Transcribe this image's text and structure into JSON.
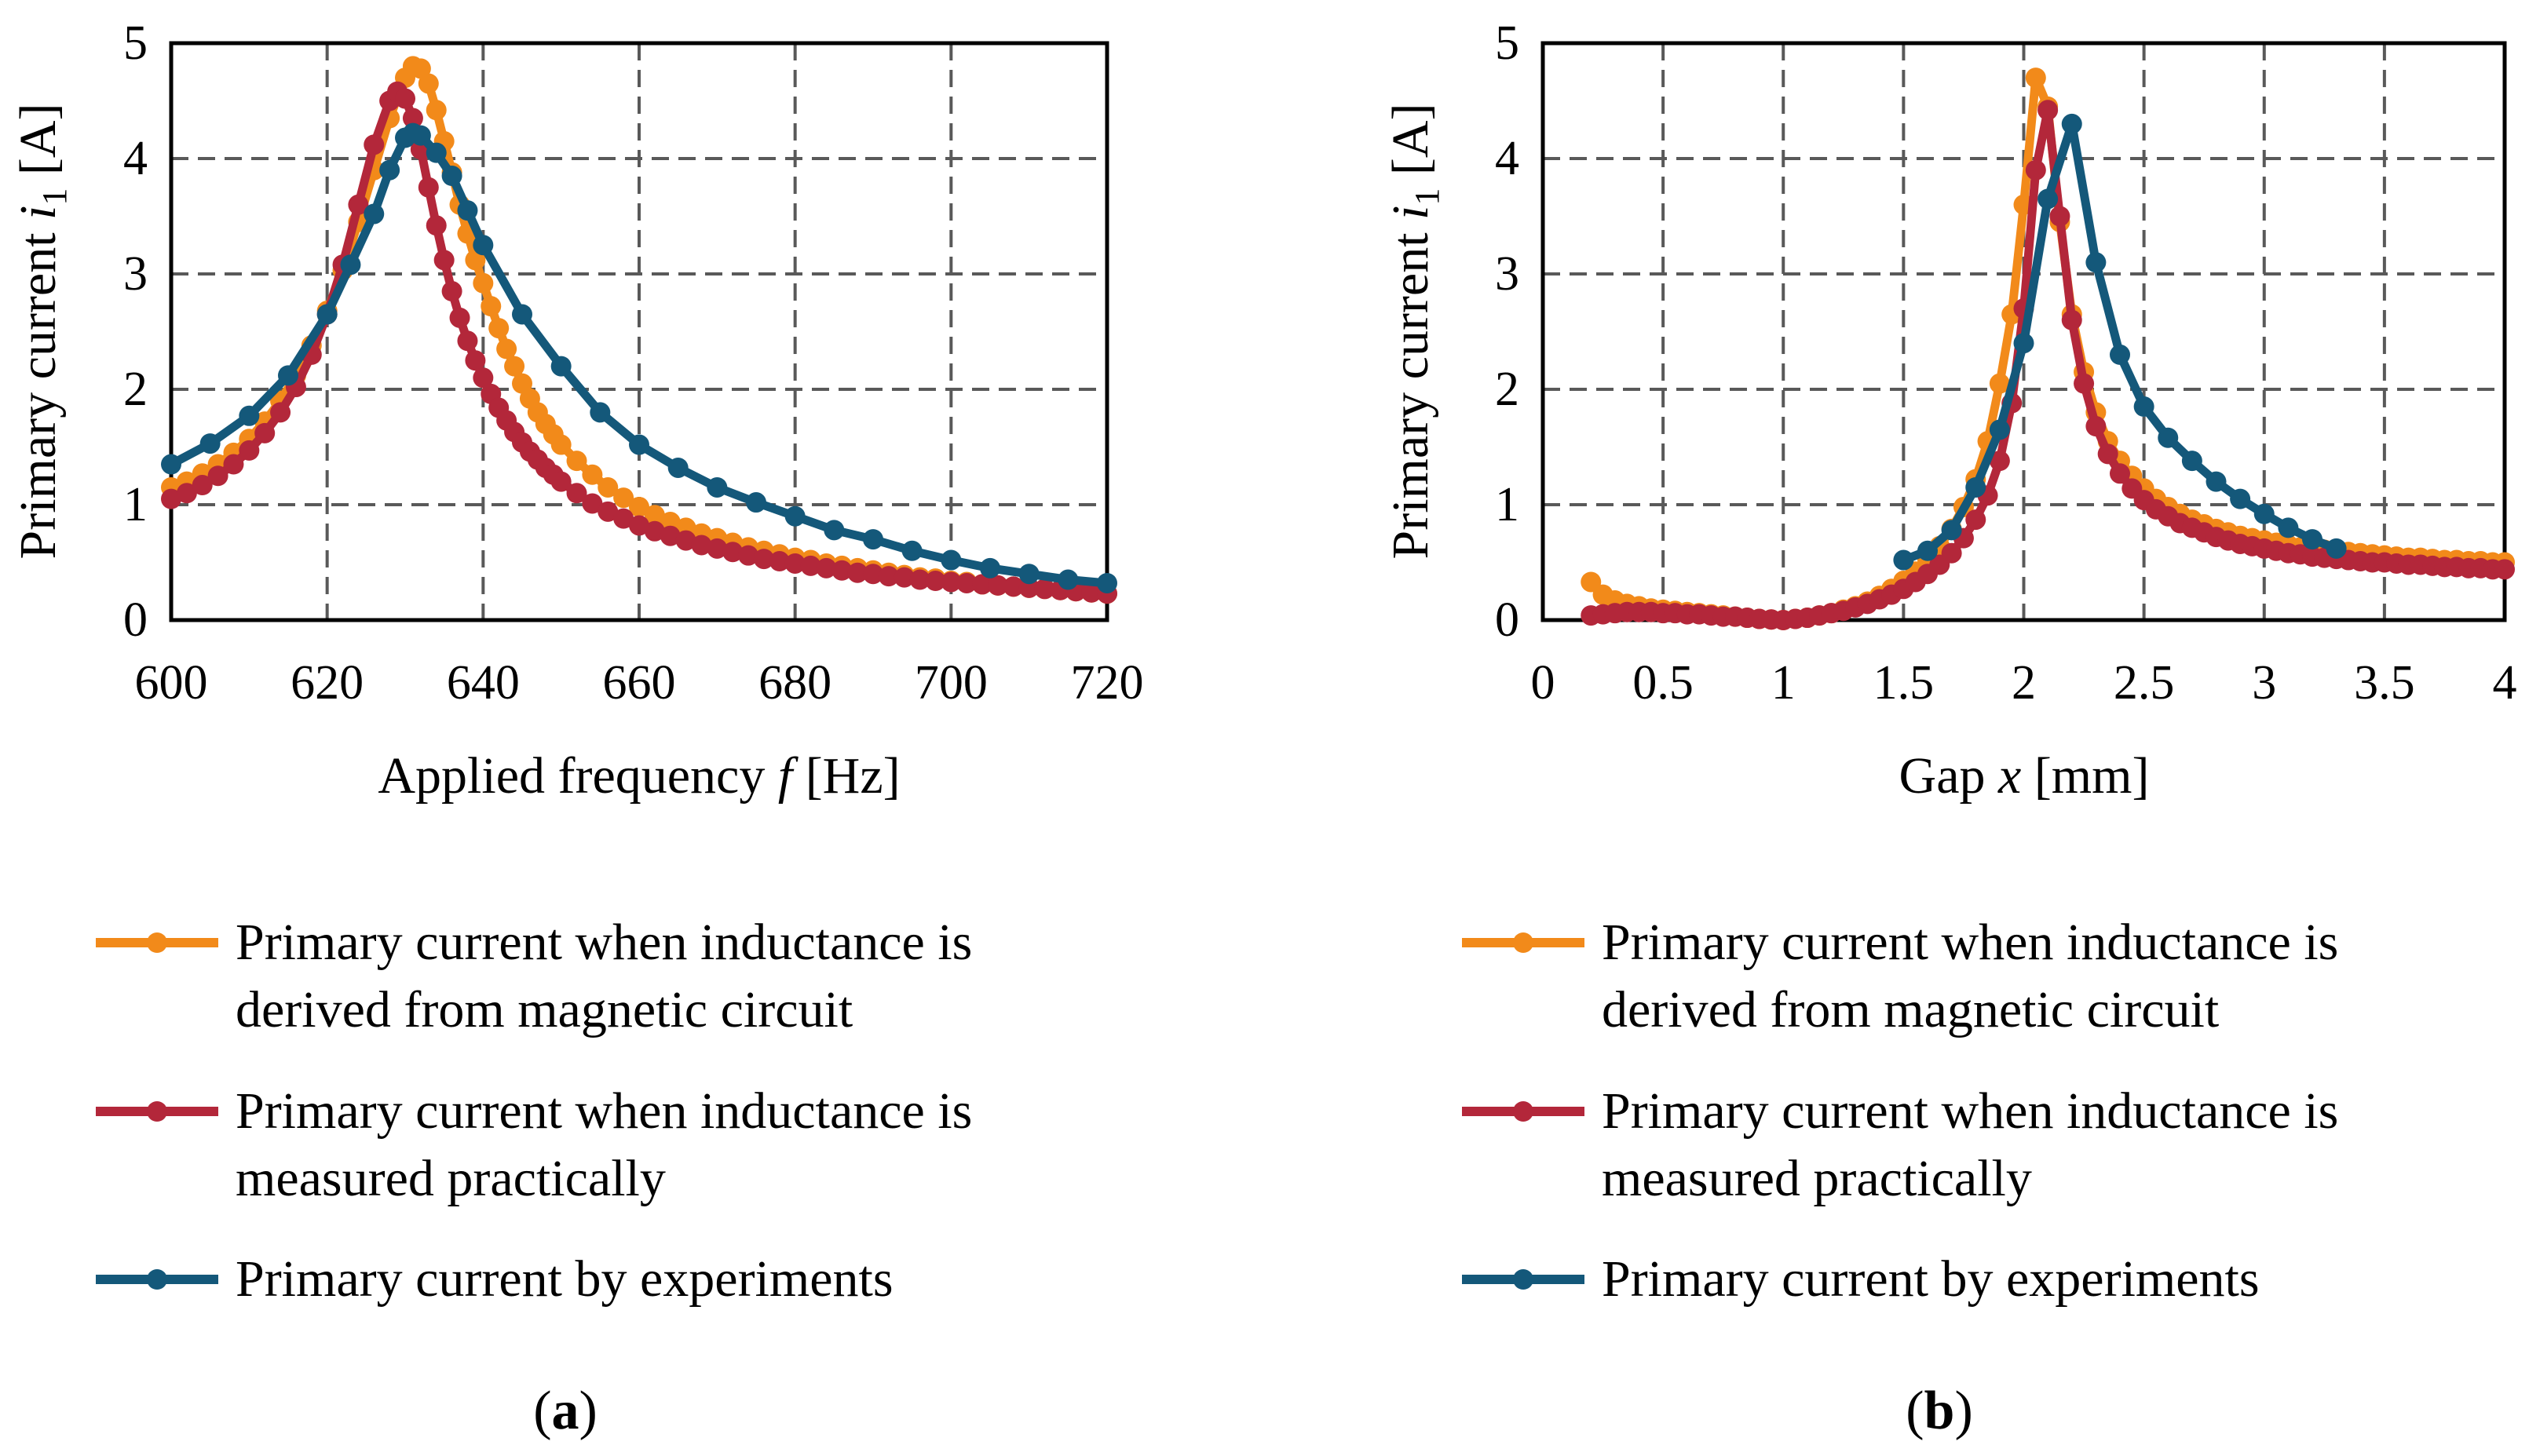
{
  "colors": {
    "orange": "#F28A1A",
    "red": "#B3273A",
    "blue": "#14587A"
  },
  "legend": {
    "s1_line1": "Primary current when inductance is",
    "s1_line2": "derived from magnetic circuit",
    "s2_line1": "Primary current when inductance is",
    "s2_line2": "measured practically",
    "s3_line1": "Primary current by experiments"
  },
  "panels": {
    "a": {
      "label_open": "(",
      "label_letter": "a",
      "label_close": ")"
    },
    "b": {
      "label_open": "(",
      "label_letter": "b",
      "label_close": ")"
    }
  },
  "chart_data": [
    {
      "type": "line",
      "panel": "a",
      "xlabel_prefix": "Applied frequency ",
      "xlabel_var": "f",
      "xlabel_suffix": " [Hz]",
      "ylabel_prefix": "Primary current ",
      "ylabel_var": "i",
      "ylabel_sub": "1",
      "ylabel_suffix": " [A]",
      "xlim": [
        600,
        720
      ],
      "ylim": [
        0,
        5
      ],
      "xticks": [
        600,
        620,
        640,
        660,
        680,
        700,
        720
      ],
      "yticks": [
        0,
        1,
        2,
        3,
        4,
        5
      ],
      "xtick_labels": [
        "600",
        "620",
        "640",
        "660",
        "680",
        "700",
        "720"
      ],
      "ytick_labels": [
        "0",
        "1",
        "2",
        "3",
        "4",
        "5"
      ],
      "grid": true,
      "legend_position": "below",
      "series": [
        {
          "name": "Primary current when inductance is derived from magnetic circuit",
          "color_key": "orange",
          "x": [
            600,
            602,
            604,
            606,
            608,
            610,
            612,
            614,
            616,
            618,
            620,
            622,
            624,
            626,
            628,
            630,
            631,
            632,
            633,
            634,
            635,
            636,
            637,
            638,
            639,
            640,
            641,
            642,
            643,
            644,
            645,
            646,
            647,
            648,
            649,
            650,
            652,
            654,
            656,
            658,
            660,
            662,
            664,
            666,
            668,
            670,
            672,
            674,
            676,
            678,
            680,
            682,
            684,
            686,
            688,
            690,
            692,
            694,
            696,
            698,
            700,
            702,
            704,
            706,
            708,
            710,
            712,
            714,
            716,
            718,
            720
          ],
          "y": [
            1.15,
            1.2,
            1.27,
            1.35,
            1.45,
            1.57,
            1.72,
            1.9,
            2.12,
            2.38,
            2.68,
            3.03,
            3.45,
            3.9,
            4.35,
            4.7,
            4.8,
            4.78,
            4.65,
            4.42,
            4.15,
            3.88,
            3.6,
            3.35,
            3.12,
            2.92,
            2.72,
            2.53,
            2.35,
            2.2,
            2.05,
            1.92,
            1.8,
            1.7,
            1.61,
            1.52,
            1.38,
            1.26,
            1.15,
            1.06,
            0.98,
            0.91,
            0.85,
            0.8,
            0.75,
            0.71,
            0.67,
            0.63,
            0.6,
            0.57,
            0.54,
            0.52,
            0.49,
            0.47,
            0.45,
            0.43,
            0.41,
            0.39,
            0.37,
            0.36,
            0.34,
            0.33,
            0.31,
            0.3,
            0.29,
            0.28,
            0.27,
            0.26,
            0.25,
            0.24,
            0.23
          ]
        },
        {
          "name": "Primary current when inductance is measured practically",
          "color_key": "red",
          "x": [
            600,
            602,
            604,
            606,
            608,
            610,
            612,
            614,
            616,
            618,
            620,
            622,
            624,
            626,
            628,
            629,
            630,
            631,
            632,
            633,
            634,
            635,
            636,
            637,
            638,
            639,
            640,
            641,
            642,
            643,
            644,
            645,
            646,
            647,
            648,
            649,
            650,
            652,
            654,
            656,
            658,
            660,
            662,
            664,
            666,
            668,
            670,
            672,
            674,
            676,
            678,
            680,
            682,
            684,
            686,
            688,
            690,
            692,
            694,
            696,
            698,
            700,
            702,
            704,
            706,
            708,
            710,
            712,
            714,
            716,
            718,
            720
          ],
          "y": [
            1.05,
            1.1,
            1.17,
            1.25,
            1.35,
            1.47,
            1.62,
            1.8,
            2.02,
            2.3,
            2.65,
            3.08,
            3.6,
            4.12,
            4.5,
            4.58,
            4.52,
            4.35,
            4.08,
            3.75,
            3.42,
            3.12,
            2.85,
            2.62,
            2.42,
            2.25,
            2.1,
            1.96,
            1.84,
            1.73,
            1.63,
            1.54,
            1.46,
            1.39,
            1.32,
            1.26,
            1.2,
            1.1,
            1.01,
            0.94,
            0.88,
            0.82,
            0.77,
            0.73,
            0.69,
            0.65,
            0.62,
            0.59,
            0.56,
            0.53,
            0.51,
            0.49,
            0.47,
            0.45,
            0.43,
            0.41,
            0.4,
            0.38,
            0.37,
            0.35,
            0.34,
            0.33,
            0.32,
            0.31,
            0.3,
            0.29,
            0.28,
            0.27,
            0.26,
            0.25,
            0.24,
            0.23
          ]
        },
        {
          "name": "Primary current by experiments",
          "color_key": "blue",
          "x": [
            600,
            605,
            610,
            615,
            620,
            623,
            626,
            628,
            630,
            631,
            632,
            634,
            636,
            638,
            640,
            645,
            650,
            655,
            660,
            665,
            670,
            675,
            680,
            685,
            690,
            695,
            700,
            705,
            710,
            715,
            720
          ],
          "y": [
            1.35,
            1.53,
            1.77,
            2.12,
            2.65,
            3.08,
            3.52,
            3.9,
            4.18,
            4.22,
            4.2,
            4.05,
            3.85,
            3.55,
            3.25,
            2.65,
            2.2,
            1.8,
            1.52,
            1.32,
            1.15,
            1.02,
            0.9,
            0.78,
            0.7,
            0.6,
            0.52,
            0.45,
            0.4,
            0.35,
            0.32
          ]
        }
      ]
    },
    {
      "type": "line",
      "panel": "b",
      "xlabel_prefix": "Gap ",
      "xlabel_var": "x",
      "xlabel_suffix": " [mm]",
      "ylabel_prefix": "Primary current ",
      "ylabel_var": "i",
      "ylabel_sub": "1",
      "ylabel_suffix": " [A]",
      "xlim": [
        0,
        4
      ],
      "ylim": [
        0,
        5
      ],
      "xticks": [
        0,
        0.5,
        1,
        1.5,
        2,
        2.5,
        3,
        3.5,
        4
      ],
      "yticks": [
        0,
        1,
        2,
        3,
        4,
        5
      ],
      "xtick_labels": [
        "0",
        "0.5",
        "1",
        "1.5",
        "2",
        "2.5",
        "3",
        "3.5",
        "4"
      ],
      "ytick_labels": [
        "0",
        "1",
        "2",
        "3",
        "4",
        "5"
      ],
      "grid": true,
      "legend_position": "below",
      "series": [
        {
          "name": "Primary current when inductance is derived from magnetic circuit",
          "color_key": "orange",
          "x": [
            0.2,
            0.25,
            0.3,
            0.35,
            0.4,
            0.45,
            0.5,
            0.55,
            0.6,
            0.65,
            0.7,
            0.75,
            0.8,
            0.85,
            0.9,
            0.95,
            1.0,
            1.05,
            1.1,
            1.15,
            1.2,
            1.25,
            1.3,
            1.35,
            1.4,
            1.45,
            1.5,
            1.55,
            1.6,
            1.65,
            1.7,
            1.75,
            1.8,
            1.85,
            1.9,
            1.95,
            2.0,
            2.05,
            2.1,
            2.15,
            2.2,
            2.25,
            2.3,
            2.35,
            2.4,
            2.45,
            2.5,
            2.55,
            2.6,
            2.65,
            2.7,
            2.75,
            2.8,
            2.85,
            2.9,
            2.95,
            3.0,
            3.05,
            3.1,
            3.15,
            3.2,
            3.25,
            3.3,
            3.35,
            3.4,
            3.45,
            3.5,
            3.55,
            3.6,
            3.65,
            3.7,
            3.75,
            3.8,
            3.85,
            3.9,
            3.95,
            4.0
          ],
          "y": [
            0.33,
            0.22,
            0.17,
            0.14,
            0.12,
            0.1,
            0.09,
            0.08,
            0.07,
            0.06,
            0.05,
            0.04,
            0.03,
            0.02,
            0.01,
            0.005,
            0.0,
            0.01,
            0.02,
            0.04,
            0.06,
            0.09,
            0.12,
            0.16,
            0.21,
            0.27,
            0.34,
            0.42,
            0.52,
            0.64,
            0.79,
            0.98,
            1.22,
            1.55,
            2.05,
            2.65,
            3.6,
            4.7,
            4.45,
            3.45,
            2.65,
            2.15,
            1.8,
            1.55,
            1.38,
            1.25,
            1.14,
            1.05,
            0.98,
            0.92,
            0.87,
            0.83,
            0.79,
            0.76,
            0.73,
            0.71,
            0.69,
            0.67,
            0.65,
            0.63,
            0.62,
            0.61,
            0.6,
            0.59,
            0.58,
            0.57,
            0.56,
            0.55,
            0.54,
            0.54,
            0.53,
            0.52,
            0.52,
            0.51,
            0.51,
            0.5,
            0.5
          ]
        },
        {
          "name": "Primary current when inductance is measured practically",
          "color_key": "red",
          "x": [
            0.2,
            0.25,
            0.3,
            0.35,
            0.4,
            0.45,
            0.5,
            0.55,
            0.6,
            0.65,
            0.7,
            0.75,
            0.8,
            0.85,
            0.9,
            0.95,
            1.0,
            1.05,
            1.1,
            1.15,
            1.2,
            1.25,
            1.3,
            1.35,
            1.4,
            1.45,
            1.5,
            1.55,
            1.6,
            1.65,
            1.7,
            1.75,
            1.8,
            1.85,
            1.9,
            1.95,
            2.0,
            2.05,
            2.1,
            2.15,
            2.2,
            2.25,
            2.3,
            2.35,
            2.4,
            2.45,
            2.5,
            2.55,
            2.6,
            2.65,
            2.7,
            2.75,
            2.8,
            2.85,
            2.9,
            2.95,
            3.0,
            3.05,
            3.1,
            3.15,
            3.2,
            3.25,
            3.3,
            3.35,
            3.4,
            3.45,
            3.5,
            3.55,
            3.6,
            3.65,
            3.7,
            3.75,
            3.8,
            3.85,
            3.9,
            3.95,
            4.0
          ],
          "y": [
            0.04,
            0.05,
            0.06,
            0.07,
            0.07,
            0.07,
            0.06,
            0.06,
            0.05,
            0.05,
            0.04,
            0.03,
            0.03,
            0.02,
            0.01,
            0.005,
            0.0,
            0.01,
            0.02,
            0.04,
            0.06,
            0.08,
            0.11,
            0.14,
            0.18,
            0.22,
            0.27,
            0.33,
            0.4,
            0.48,
            0.58,
            0.71,
            0.87,
            1.08,
            1.38,
            1.88,
            2.7,
            3.9,
            4.42,
            3.5,
            2.6,
            2.05,
            1.68,
            1.44,
            1.27,
            1.14,
            1.04,
            0.96,
            0.9,
            0.84,
            0.8,
            0.76,
            0.72,
            0.69,
            0.66,
            0.64,
            0.62,
            0.6,
            0.58,
            0.57,
            0.55,
            0.54,
            0.53,
            0.52,
            0.51,
            0.5,
            0.5,
            0.49,
            0.48,
            0.48,
            0.47,
            0.46,
            0.46,
            0.45,
            0.45,
            0.44,
            0.44
          ]
        },
        {
          "name": "Primary current by experiments",
          "color_key": "blue",
          "x": [
            1.5,
            1.6,
            1.7,
            1.8,
            1.9,
            2.0,
            2.1,
            2.2,
            2.3,
            2.4,
            2.5,
            2.6,
            2.7,
            2.8,
            2.9,
            3.0,
            3.1,
            3.2,
            3.3
          ],
          "y": [
            0.52,
            0.6,
            0.78,
            1.15,
            1.65,
            2.4,
            3.65,
            4.3,
            3.1,
            2.3,
            1.85,
            1.58,
            1.38,
            1.2,
            1.05,
            0.92,
            0.8,
            0.7,
            0.62
          ]
        }
      ]
    }
  ]
}
